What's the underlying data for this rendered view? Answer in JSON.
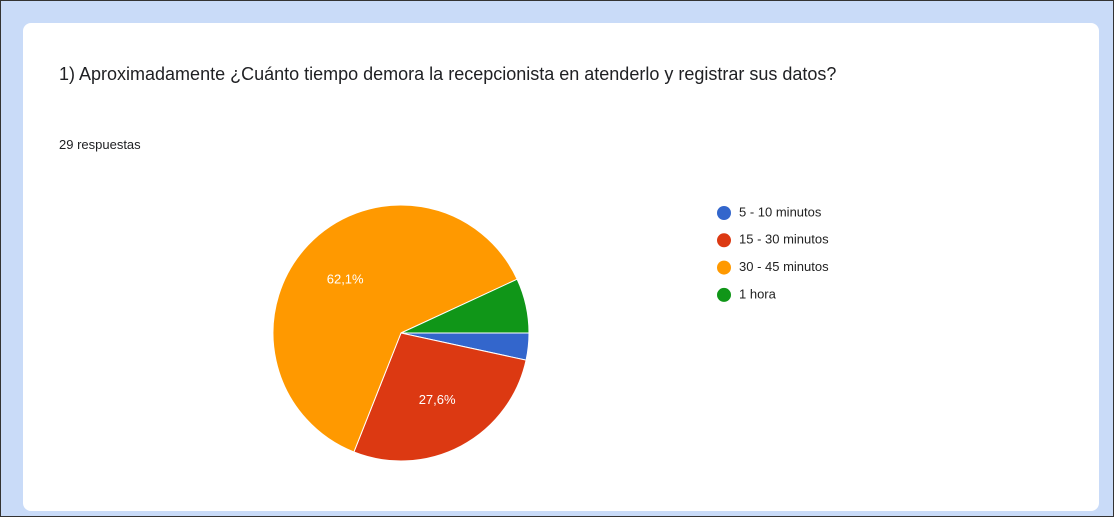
{
  "chart_data": {
    "type": "pie",
    "title": "1) Aproximadamente ¿Cuánto tiempo demora la recepcionista en atenderlo y registrar sus datos?",
    "subtitle": "29 respuestas",
    "categories": [
      "5 - 10 minutos",
      "15 - 30 minutos",
      "30 - 45 minutos",
      "1 hora"
    ],
    "values": [
      3.4,
      27.6,
      62.1,
      6.9
    ],
    "value_labels": [
      null,
      "27,6%",
      "62,1%",
      null
    ],
    "colors": [
      "#3366cc",
      "#dc3912",
      "#ff9900",
      "#109618"
    ],
    "legend": "right"
  }
}
